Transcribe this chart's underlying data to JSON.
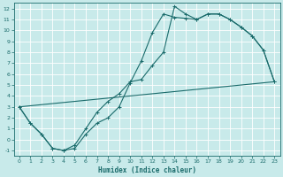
{
  "xlabel": "Humidex (Indice chaleur)",
  "bg_color": "#c8eaea",
  "grid_color": "#ffffff",
  "line_color": "#1a6b6b",
  "xlim": [
    -0.5,
    23.5
  ],
  "ylim": [
    -1.5,
    12.5
  ],
  "xticks": [
    0,
    1,
    2,
    3,
    4,
    5,
    6,
    7,
    8,
    9,
    10,
    11,
    12,
    13,
    14,
    15,
    16,
    17,
    18,
    19,
    20,
    21,
    22,
    23
  ],
  "yticks": [
    -1,
    0,
    1,
    2,
    3,
    4,
    5,
    6,
    7,
    8,
    9,
    10,
    11,
    12
  ],
  "line1_x": [
    0,
    1,
    2,
    3,
    4,
    5,
    6,
    7,
    8,
    9,
    10,
    11,
    12,
    13,
    14,
    15,
    16,
    17,
    18,
    19,
    20,
    21,
    22,
    23
  ],
  "line1_y": [
    3.0,
    1.5,
    0.5,
    -0.8,
    -1.0,
    -0.8,
    0.5,
    1.5,
    2.0,
    3.0,
    5.2,
    7.2,
    9.8,
    11.5,
    11.2,
    11.1,
    11.0,
    11.5,
    11.5,
    11.0,
    10.3,
    9.5,
    8.2,
    5.3
  ],
  "line2_x": [
    0,
    1,
    2,
    3,
    4,
    5,
    6,
    7,
    8,
    9,
    10,
    11,
    12,
    13,
    14,
    15,
    16,
    17,
    18,
    19,
    20,
    21,
    22,
    23
  ],
  "line2_y": [
    3.0,
    1.5,
    0.5,
    -0.8,
    -1.0,
    -0.5,
    1.0,
    2.5,
    3.5,
    4.2,
    5.3,
    5.5,
    6.8,
    8.0,
    12.2,
    11.5,
    11.0,
    11.5,
    11.5,
    11.0,
    10.3,
    9.5,
    8.2,
    5.3
  ],
  "line3_x": [
    0,
    23
  ],
  "line3_y": [
    3.0,
    5.3
  ]
}
